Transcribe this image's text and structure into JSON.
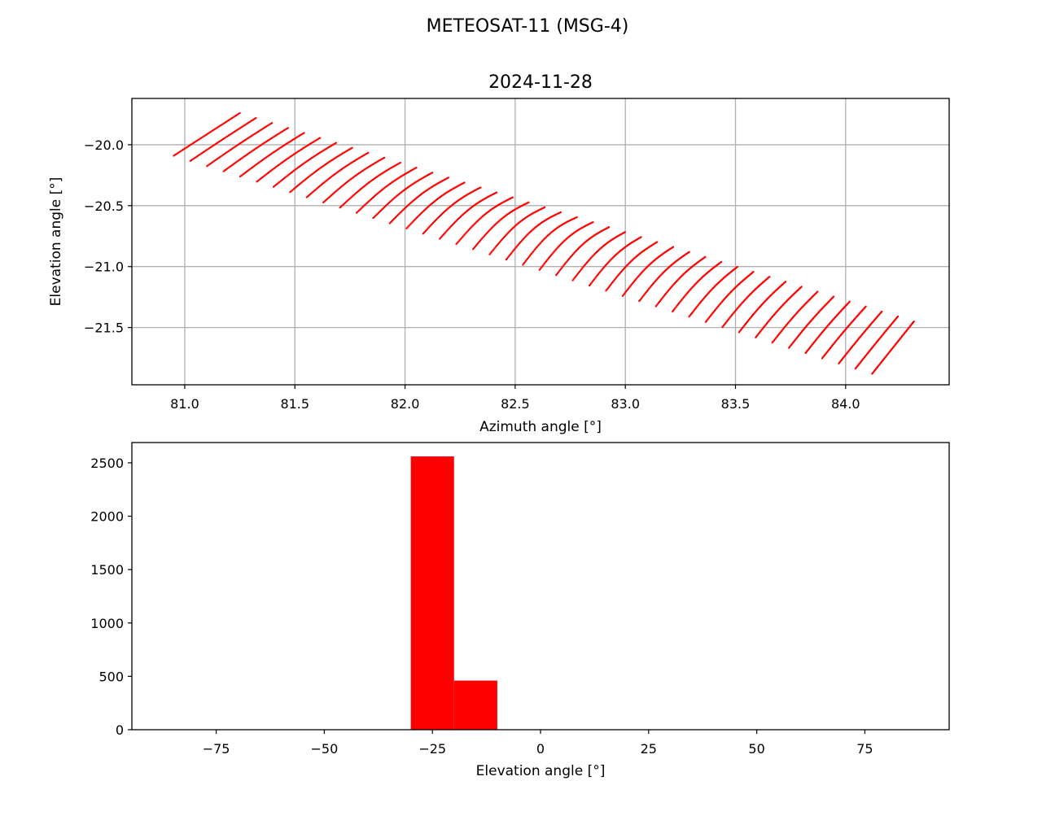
{
  "figure": {
    "suptitle": "METEOSAT-11 (MSG-4)"
  },
  "chart_data": [
    {
      "type": "scatter",
      "title": "2024-11-28",
      "xlabel": "Azimuth angle [°]",
      "ylabel": "Elevation angle [°]",
      "xlim": [
        80.76,
        84.47
      ],
      "ylim": [
        -21.97,
        -19.62
      ],
      "xticks": [
        81.0,
        81.5,
        82.0,
        82.5,
        83.0,
        83.5,
        84.0
      ],
      "xtick_labels": [
        "81.0",
        "81.5",
        "82.0",
        "82.5",
        "83.0",
        "83.5",
        "84.0"
      ],
      "yticks": [
        -20.0,
        -20.5,
        -21.0,
        -21.5
      ],
      "ytick_labels": [
        "−20.0",
        "−20.5",
        "−21.0",
        "−21.5"
      ],
      "grid": true,
      "marker_color": "#ff0000",
      "corners": {
        "left": [
          80.95,
          -20.09
        ],
        "top": [
          81.25,
          -19.74
        ],
        "right": [
          84.31,
          -21.45
        ],
        "bottom": [
          84.12,
          -21.88
        ]
      },
      "grid_rows": 42,
      "grid_cols": 70
    },
    {
      "type": "bar",
      "subtype": "histogram",
      "title": "",
      "xlabel": "Elevation angle [°]",
      "ylabel": "",
      "xlim": [
        -94.5,
        94.5
      ],
      "ylim": [
        0,
        2690
      ],
      "xticks": [
        -75,
        -50,
        -25,
        0,
        25,
        50,
        75
      ],
      "xtick_labels": [
        "−75",
        "−50",
        "−25",
        "0",
        "25",
        "50",
        "75"
      ],
      "yticks": [
        0,
        500,
        1000,
        1500,
        2000,
        2500
      ],
      "ytick_labels": [
        "0",
        "500",
        "1000",
        "1500",
        "2000",
        "2500"
      ],
      "grid": false,
      "bar_color": "#ff0000",
      "bins": [
        {
          "x0": -30,
          "x1": -20,
          "count": 2560
        },
        {
          "x0": -20,
          "x1": -10,
          "count": 460
        }
      ]
    }
  ]
}
